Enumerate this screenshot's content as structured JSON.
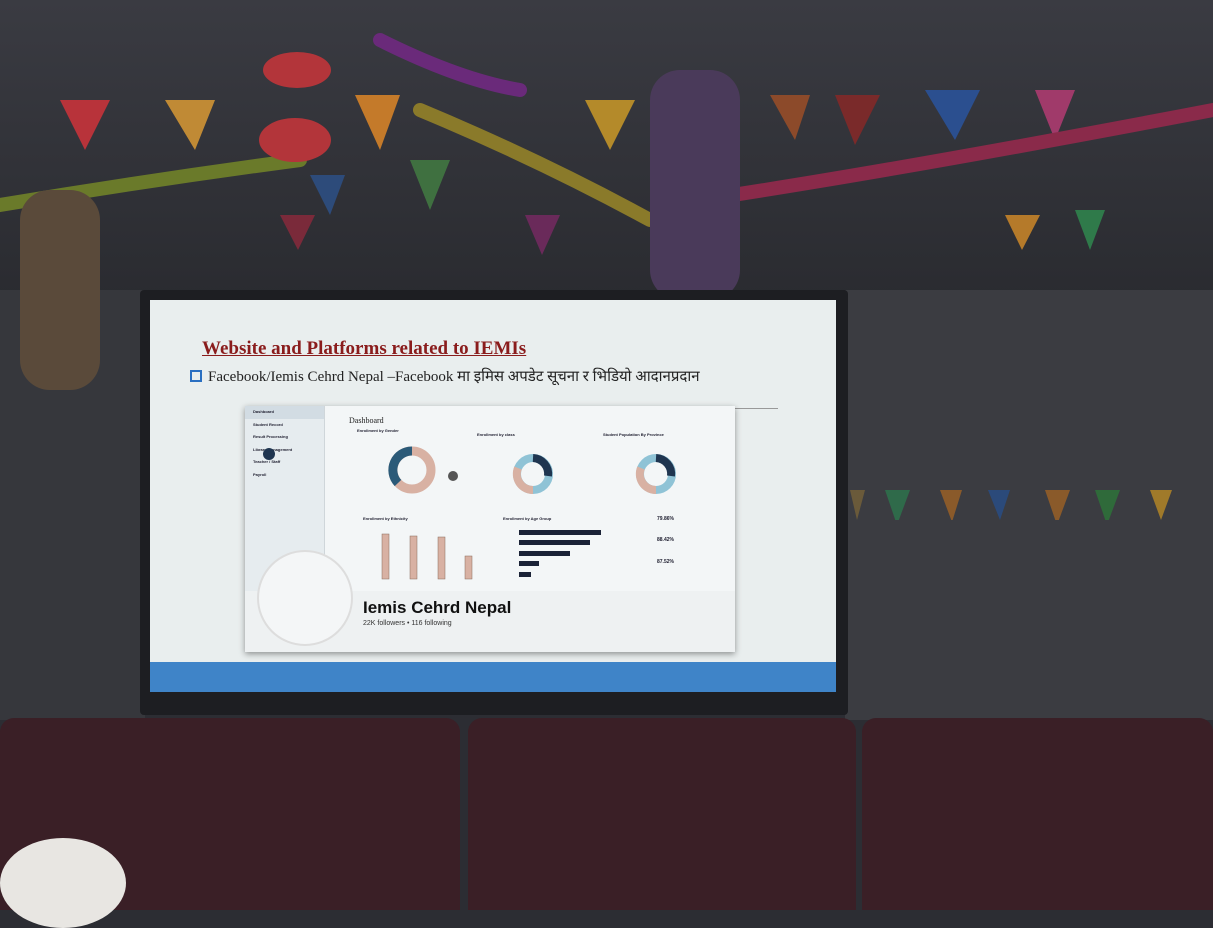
{
  "slide": {
    "title": "Website and Platforms related to IEMIs",
    "bullet": "Facebook/Iemis Cehrd Nepal –Facebook मा  इमिस अपडेट सूचना र भिडियो आदानप्रदान"
  },
  "dashboard": {
    "heading": "Dashboard",
    "sidebar": [
      "Dashboard",
      "Student Record",
      "Result Processing",
      "Library Management",
      "Teacher / Staff",
      "Payroll"
    ],
    "panels": {
      "gender": "Enrollment by Gender",
      "class": "Enrollment by class",
      "province": "Student Population By Province",
      "ethnicity": "Enrollment by Ethnicity",
      "age": "Enrollment by Age Group"
    },
    "stats": [
      "79.86%",
      "88.42%",
      "87.52%"
    ]
  },
  "facebook": {
    "name": "Iemis Cehrd Nepal",
    "meta": "22K followers • 116 following"
  },
  "colors": {
    "title": "#8a1c1c",
    "bar": "#3f84c8",
    "sofa": "#3a1f26"
  }
}
